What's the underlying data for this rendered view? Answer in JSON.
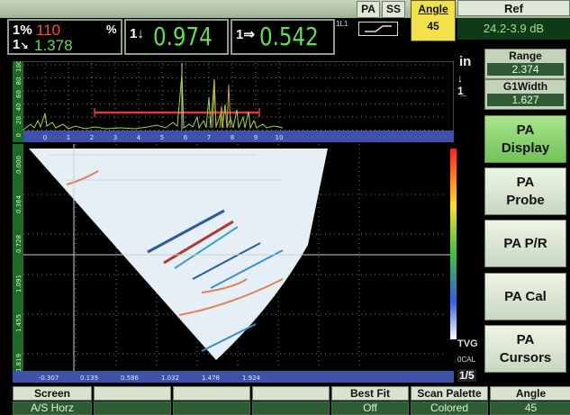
{
  "header": {
    "pa_label": "PA",
    "ss_label": "SS",
    "angle": {
      "label": "Angle",
      "value": "45"
    },
    "ref": {
      "label": "Ref",
      "value": "24.2-3.9  dB"
    },
    "probe_small_label": "1L1"
  },
  "readouts": {
    "r1_label_top": "1%",
    "r1_value_top": "110",
    "r1_unit": "%",
    "r1_label_bottom": "1",
    "r1_value_bottom": "1.378",
    "r2_label": "1↓",
    "r2_value": "0.974",
    "r3_label": "1⇒",
    "r3_value": "0.542"
  },
  "units": {
    "unit": "in",
    "cursor_label": "1"
  },
  "right_panel": {
    "range": {
      "label": "Range",
      "value": "2.374"
    },
    "g1width": {
      "label": "G1Width",
      "value": "1.627"
    },
    "buttons": [
      "PA\nDisplay",
      "PA\nProbe",
      "PA P/R",
      "PA Cal",
      "PA\nCursors"
    ]
  },
  "ascan": {
    "y_ticks": [
      "100",
      "80",
      "60",
      "40",
      "20",
      "0"
    ],
    "x_ticks": [
      "0",
      "1",
      "2",
      "3",
      "4",
      "5",
      "6",
      "7",
      "8",
      "9",
      "10"
    ]
  },
  "sscan": {
    "y_ticks": [
      "0.000",
      "0.364",
      "0.728",
      "1.091",
      "1.455",
      "1.819"
    ],
    "x_ticks": [
      "-0.307",
      "0.139",
      "0.586",
      "1.032",
      "1.478",
      "1.924"
    ],
    "tvg_label": "TVG",
    "cal_label": "0CAL",
    "page": "1/5"
  },
  "bottom_bar": [
    {
      "label": "Screen",
      "value": "A/S Horz"
    },
    {
      "label": "",
      "value": ""
    },
    {
      "label": "",
      "value": ""
    },
    {
      "label": "",
      "value": ""
    },
    {
      "label": "Best Fit",
      "value": "Off"
    },
    {
      "label": "Scan Palette",
      "value": "Colored"
    },
    {
      "label": "Angle",
      "value": "45"
    }
  ],
  "colors": {
    "accent_green": "#66dd55",
    "active_button": "#8fd873",
    "angle_highlight": "#f2e14a",
    "gate": "#e03a2a"
  }
}
